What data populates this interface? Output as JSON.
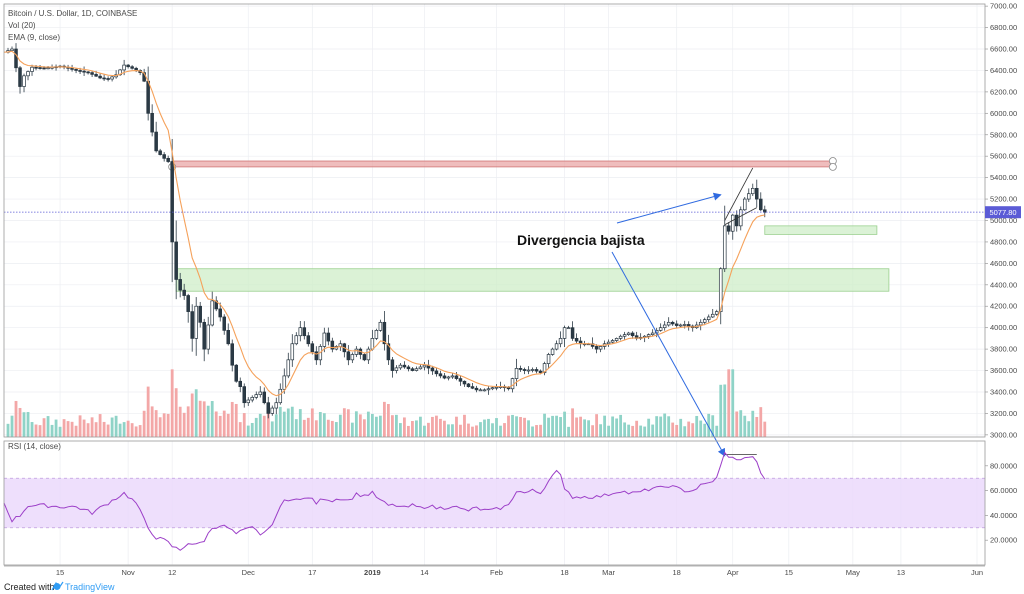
{
  "chart_data": {
    "type": "candlestick",
    "legend": [
      "Bitcoin / U.S. Dollar, 1D, COINBASE",
      "Vol (20)",
      "EMA (9, close)"
    ],
    "rsi_label": "RSI (14, close)",
    "y_ticks": [
      "7000.00",
      "6800.00",
      "6600.00",
      "6400.00",
      "6200.00",
      "6000.00",
      "5800.00",
      "5600.00",
      "5400.00",
      "5200.00",
      "5000.00",
      "4800.00",
      "4600.00",
      "4400.00",
      "4200.00",
      "4000.00",
      "3800.00",
      "3600.00",
      "3400.00",
      "3200.00",
      "3000.00"
    ],
    "y_range": [
      2980,
      7020
    ],
    "rsi_ticks": [
      "80.0000",
      "60.0000",
      "40.0000",
      "20.0000"
    ],
    "rsi_range": [
      0,
      100
    ],
    "rsi_band": [
      30,
      70
    ],
    "x_labels": [
      {
        "label": "15",
        "day": 14
      },
      {
        "label": "Nov",
        "day": 31
      },
      {
        "label": "12",
        "day": 42
      },
      {
        "label": "Dec",
        "day": 61
      },
      {
        "label": "17",
        "day": 77
      },
      {
        "label": "2019",
        "day": 92
      },
      {
        "label": "14",
        "day": 105
      },
      {
        "label": "Feb",
        "day": 123
      },
      {
        "label": "18",
        "day": 140
      },
      {
        "label": "Mar",
        "day": 151
      },
      {
        "label": "18",
        "day": 168
      },
      {
        "label": "Apr",
        "day": 182
      },
      {
        "label": "15",
        "day": 196
      },
      {
        "label": "May",
        "day": 212
      },
      {
        "label": "13",
        "day": 224
      },
      {
        "label": "Jun",
        "day": 243
      }
    ],
    "days_visible": [
      0,
      245
    ],
    "last_price": "5077.80",
    "horizontal_line": 5077.8,
    "resistance_zone": {
      "from_day": 42,
      "to_day": 207,
      "low": 5500,
      "high": 5555
    },
    "support_zones": [
      {
        "from_day": 43,
        "to_day": 221,
        "low": 4340,
        "high": 4550
      },
      {
        "from_day": 190,
        "to_day": 218,
        "low": 4870,
        "high": 4950
      }
    ],
    "annotation": "Divergencia bajista",
    "price_keypoints": [
      [
        0,
        6570
      ],
      [
        2,
        6600
      ],
      [
        4,
        6250
      ],
      [
        5,
        6350
      ],
      [
        7,
        6430
      ],
      [
        10,
        6420
      ],
      [
        14,
        6440
      ],
      [
        18,
        6400
      ],
      [
        21,
        6380
      ],
      [
        24,
        6330
      ],
      [
        26,
        6320
      ],
      [
        28,
        6360
      ],
      [
        30,
        6450
      ],
      [
        32,
        6420
      ],
      [
        34,
        6380
      ],
      [
        35,
        6300
      ],
      [
        36,
        6000
      ],
      [
        38,
        5650
      ],
      [
        40,
        5580
      ],
      [
        41,
        5550
      ],
      [
        42,
        4800
      ],
      [
        43,
        4450
      ],
      [
        44,
        4350
      ],
      [
        45,
        4300
      ],
      [
        46,
        4150
      ],
      [
        47,
        3900
      ],
      [
        48,
        4200
      ],
      [
        49,
        4050
      ],
      [
        50,
        3800
      ],
      [
        52,
        4250
      ],
      [
        54,
        4100
      ],
      [
        56,
        3850
      ],
      [
        57,
        3650
      ],
      [
        58,
        3500
      ],
      [
        59,
        3450
      ],
      [
        60,
        3300
      ],
      [
        62,
        3350
      ],
      [
        64,
        3400
      ],
      [
        66,
        3200
      ],
      [
        68,
        3300
      ],
      [
        70,
        3550
      ],
      [
        72,
        3850
      ],
      [
        74,
        4000
      ],
      [
        76,
        3850
      ],
      [
        78,
        3700
      ],
      [
        80,
        3950
      ],
      [
        82,
        3800
      ],
      [
        84,
        3850
      ],
      [
        86,
        3700
      ],
      [
        88,
        3800
      ],
      [
        90,
        3700
      ],
      [
        92,
        3900
      ],
      [
        94,
        4050
      ],
      [
        95,
        3850
      ],
      [
        96,
        3700
      ],
      [
        97,
        3600
      ],
      [
        99,
        3650
      ],
      [
        102,
        3600
      ],
      [
        105,
        3650
      ],
      [
        108,
        3570
      ],
      [
        110,
        3530
      ],
      [
        112,
        3550
      ],
      [
        114,
        3500
      ],
      [
        116,
        3450
      ],
      [
        118,
        3420
      ],
      [
        120,
        3420
      ],
      [
        122,
        3440
      ],
      [
        124,
        3450
      ],
      [
        126,
        3430
      ],
      [
        128,
        3620
      ],
      [
        130,
        3600
      ],
      [
        132,
        3610
      ],
      [
        134,
        3580
      ],
      [
        136,
        3750
      ],
      [
        138,
        3850
      ],
      [
        139,
        3900
      ],
      [
        140,
        4000
      ],
      [
        141,
        4000
      ],
      [
        142,
        3900
      ],
      [
        144,
        3850
      ],
      [
        146,
        3850
      ],
      [
        148,
        3800
      ],
      [
        150,
        3850
      ],
      [
        152,
        3880
      ],
      [
        154,
        3920
      ],
      [
        156,
        3950
      ],
      [
        158,
        3900
      ],
      [
        160,
        3920
      ],
      [
        162,
        3950
      ],
      [
        164,
        4000
      ],
      [
        166,
        4050
      ],
      [
        168,
        4020
      ],
      [
        170,
        4030
      ],
      [
        172,
        4000
      ],
      [
        174,
        4050
      ],
      [
        176,
        4100
      ],
      [
        178,
        4150
      ],
      [
        180,
        4950
      ],
      [
        181,
        4900
      ],
      [
        182,
        5050
      ],
      [
        183,
        4950
      ],
      [
        184,
        5100
      ],
      [
        185,
        5200
      ],
      [
        186,
        5250
      ],
      [
        187,
        5300
      ],
      [
        188,
        5200
      ],
      [
        189,
        5100
      ],
      [
        190,
        5077
      ]
    ],
    "rsi_keypoints": [
      [
        0,
        50
      ],
      [
        2,
        36
      ],
      [
        4,
        40
      ],
      [
        6,
        48
      ],
      [
        10,
        48
      ],
      [
        14,
        47
      ],
      [
        18,
        47
      ],
      [
        22,
        42
      ],
      [
        26,
        50
      ],
      [
        30,
        58
      ],
      [
        33,
        50
      ],
      [
        36,
        30
      ],
      [
        38,
        22
      ],
      [
        40,
        20
      ],
      [
        41,
        18
      ],
      [
        42,
        15
      ],
      [
        44,
        12
      ],
      [
        46,
        18
      ],
      [
        48,
        16
      ],
      [
        50,
        20
      ],
      [
        52,
        30
      ],
      [
        54,
        32
      ],
      [
        56,
        30
      ],
      [
        58,
        25
      ],
      [
        60,
        28
      ],
      [
        62,
        30
      ],
      [
        64,
        25
      ],
      [
        66,
        28
      ],
      [
        68,
        40
      ],
      [
        70,
        52
      ],
      [
        72,
        54
      ],
      [
        74,
        52
      ],
      [
        76,
        55
      ],
      [
        78,
        50
      ],
      [
        80,
        54
      ],
      [
        82,
        52
      ],
      [
        84,
        54
      ],
      [
        86,
        52
      ],
      [
        88,
        57
      ],
      [
        90,
        56
      ],
      [
        92,
        58
      ],
      [
        94,
        52
      ],
      [
        96,
        48
      ],
      [
        98,
        48
      ],
      [
        100,
        46
      ],
      [
        102,
        48
      ],
      [
        104,
        46
      ],
      [
        106,
        48
      ],
      [
        108,
        46
      ],
      [
        110,
        46
      ],
      [
        112,
        48
      ],
      [
        114,
        45
      ],
      [
        116,
        44
      ],
      [
        118,
        46
      ],
      [
        120,
        44
      ],
      [
        122,
        44
      ],
      [
        124,
        46
      ],
      [
        126,
        48
      ],
      [
        128,
        60
      ],
      [
        130,
        58
      ],
      [
        132,
        60
      ],
      [
        134,
        58
      ],
      [
        136,
        68
      ],
      [
        137,
        74
      ],
      [
        138,
        76
      ],
      [
        139,
        72
      ],
      [
        140,
        60
      ],
      [
        141,
        58
      ],
      [
        142,
        55
      ],
      [
        144,
        55
      ],
      [
        146,
        55
      ],
      [
        148,
        55
      ],
      [
        150,
        56
      ],
      [
        152,
        58
      ],
      [
        154,
        60
      ],
      [
        156,
        58
      ],
      [
        158,
        58
      ],
      [
        160,
        60
      ],
      [
        162,
        62
      ],
      [
        164,
        62
      ],
      [
        166,
        64
      ],
      [
        168,
        62
      ],
      [
        170,
        60
      ],
      [
        172,
        60
      ],
      [
        174,
        64
      ],
      [
        176,
        66
      ],
      [
        178,
        70
      ],
      [
        180,
        90
      ],
      [
        181,
        88
      ],
      [
        182,
        86
      ],
      [
        183,
        84
      ],
      [
        184,
        86
      ],
      [
        185,
        87
      ],
      [
        186,
        86
      ],
      [
        187,
        88
      ],
      [
        188,
        82
      ],
      [
        189,
        75
      ],
      [
        190,
        68
      ]
    ]
  },
  "footer": {
    "created_with": "Created with",
    "brand": "TradingView"
  }
}
